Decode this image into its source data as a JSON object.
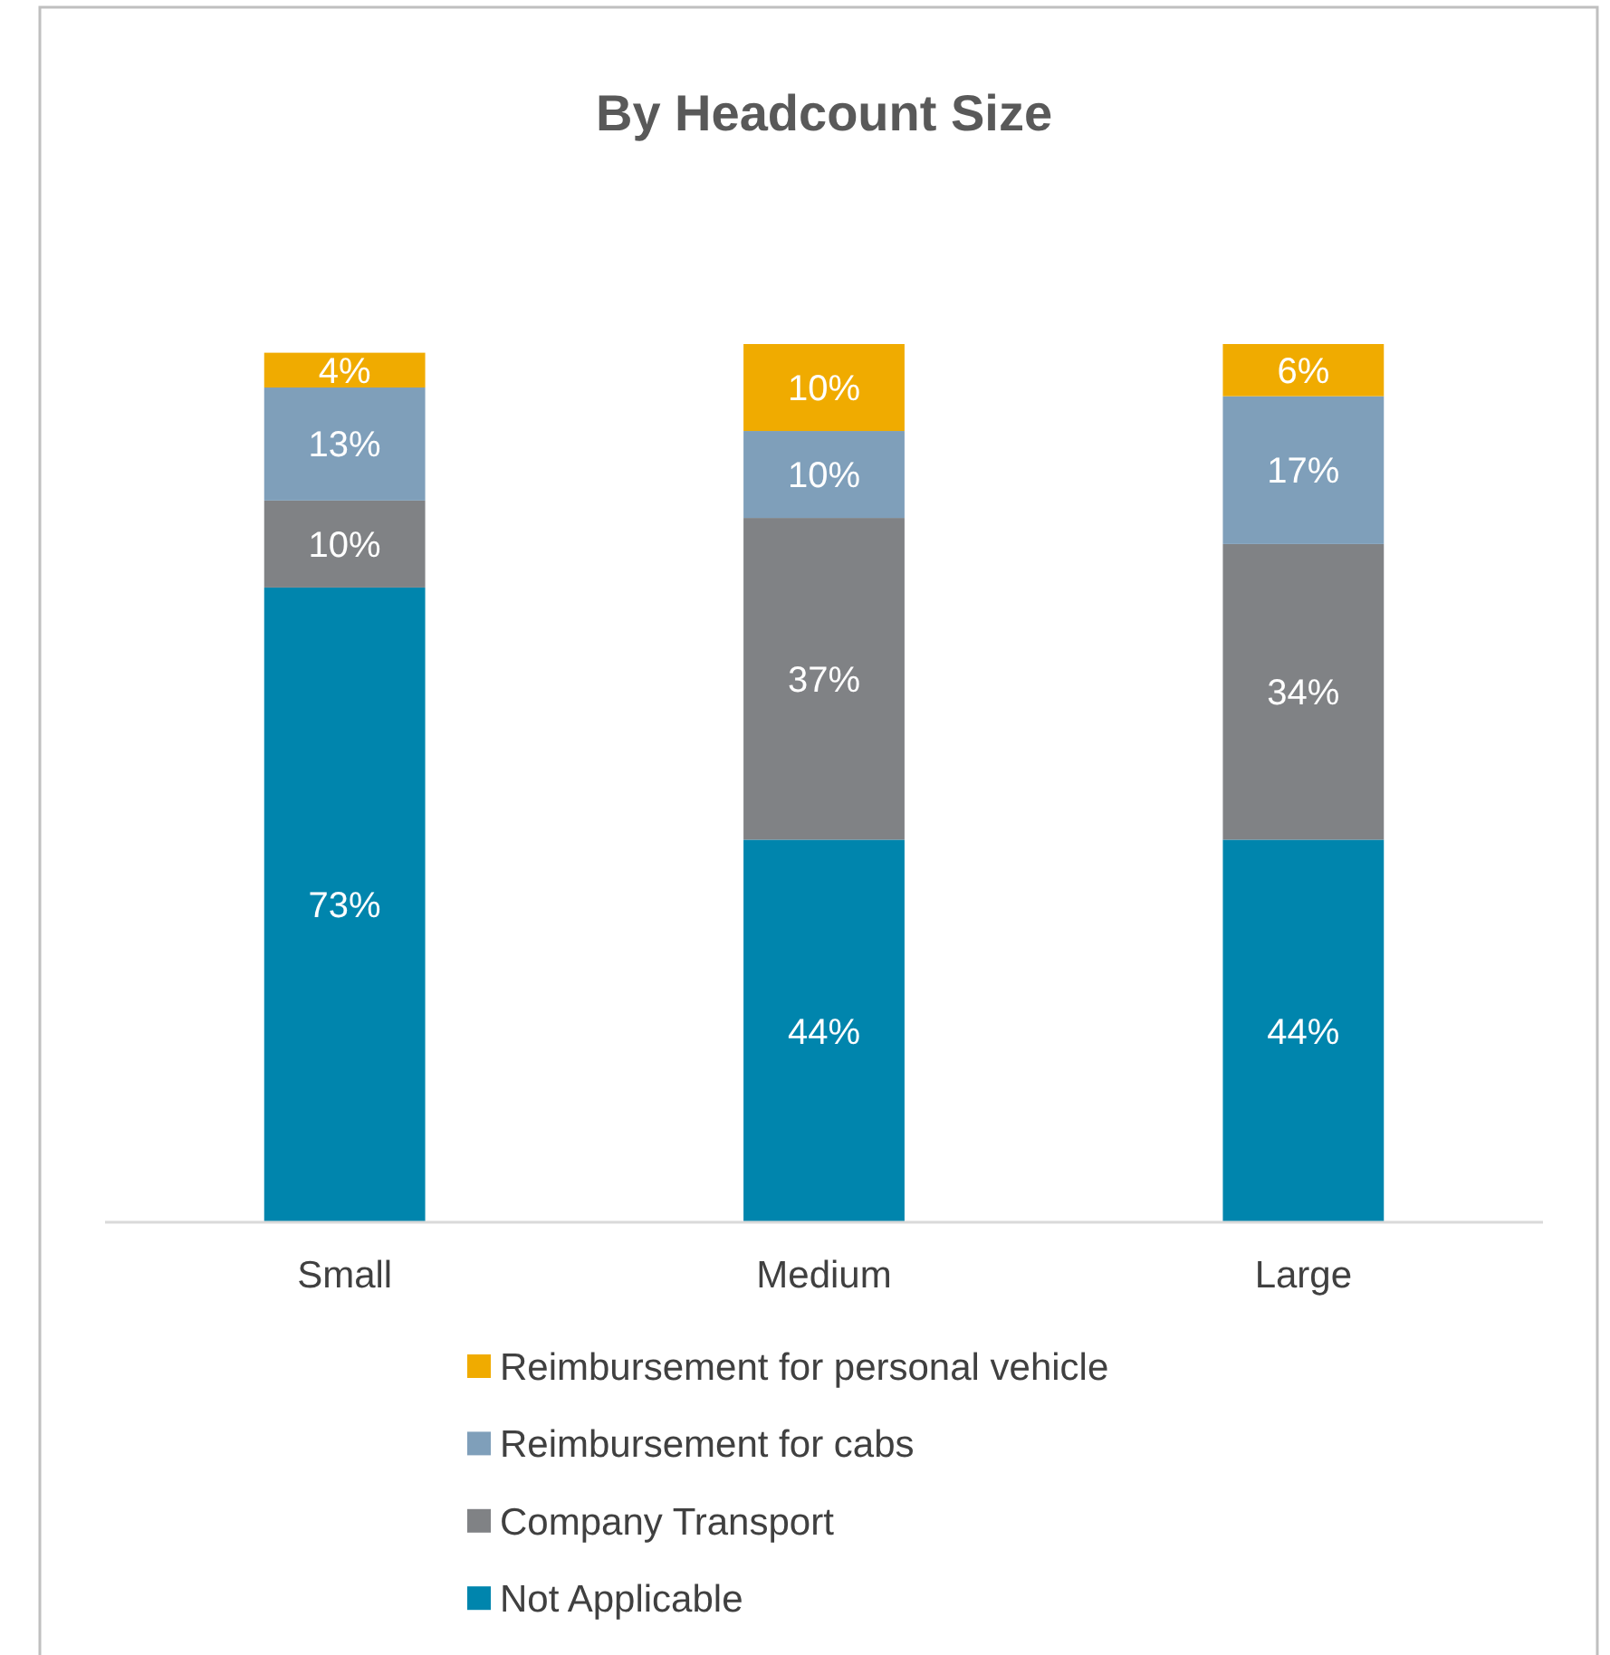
{
  "chart_data": {
    "type": "bar",
    "title": "By Headcount Size",
    "categories": [
      "Small",
      "Medium",
      "Large"
    ],
    "stacked": true,
    "legend": "bottom",
    "grid": false,
    "series": [
      {
        "name": "Not Applicable",
        "color": "#0085ad",
        "values": [
          73,
          44,
          44
        ],
        "value_labels": [
          "73%",
          "44%",
          "44%"
        ]
      },
      {
        "name": "Company Transport",
        "color": "#808285",
        "values": [
          10,
          37,
          34
        ],
        "value_labels": [
          "10%",
          "37%",
          "34%"
        ]
      },
      {
        "name": "Reimbursement for cabs",
        "color": "#7f9fba",
        "values": [
          13,
          10,
          17
        ],
        "value_labels": [
          "13%",
          "10%",
          "17%"
        ]
      },
      {
        "name": "Reimbursement for personal vehicle",
        "color": "#f0ab00",
        "values": [
          4,
          10,
          6
        ],
        "value_labels": [
          "4%",
          "10%",
          "6%"
        ]
      }
    ]
  }
}
